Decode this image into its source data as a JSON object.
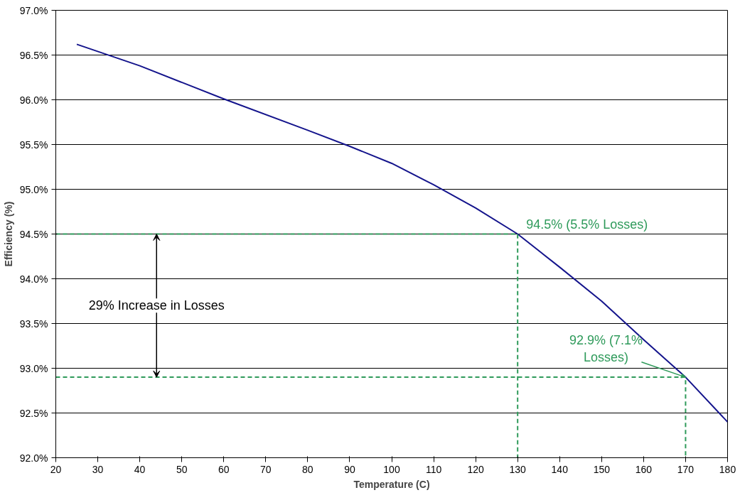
{
  "chart_data": {
    "type": "line",
    "xlabel": "Temperature (C)",
    "ylabel": "Efficiency (%)",
    "xlim": [
      20,
      180
    ],
    "xticks": [
      20,
      30,
      40,
      50,
      60,
      70,
      80,
      90,
      100,
      110,
      120,
      130,
      140,
      150,
      160,
      170,
      180
    ],
    "ylim": [
      92.0,
      97.0
    ],
    "yticks": [
      {
        "value": 92.0,
        "label": "92.0%"
      },
      {
        "value": 92.5,
        "label": "92.5%"
      },
      {
        "value": 93.0,
        "label": "93.0%"
      },
      {
        "value": 93.5,
        "label": "93.5%"
      },
      {
        "value": 94.0,
        "label": "94.0%"
      },
      {
        "value": 94.5,
        "label": "94.5%"
      },
      {
        "value": 95.0,
        "label": "95.0%"
      },
      {
        "value": 95.5,
        "label": "95.5%"
      },
      {
        "value": 96.0,
        "label": "96.0%"
      },
      {
        "value": 96.5,
        "label": "96.5%"
      },
      {
        "value": 97.0,
        "label": "97.0%"
      }
    ],
    "grid": "y",
    "marker": "none",
    "line_style": "solid",
    "series": [
      {
        "color": "#14148c",
        "x": [
          25,
          40,
          60,
          80,
          90,
          100,
          110,
          120,
          130,
          140,
          150,
          160,
          170,
          180
        ],
        "values": [
          96.62,
          96.38,
          96.01,
          95.66,
          95.48,
          95.29,
          95.05,
          94.79,
          94.5,
          94.13,
          93.75,
          93.32,
          92.9,
          92.4
        ]
      },
      {
        "color": "#2e9a5a",
        "line_style": "dashed",
        "x": [
          20,
          130,
          130
        ],
        "values": [
          94.5,
          94.5,
          92.0
        ]
      },
      {
        "color": "#2e9a5a",
        "line_style": "dashed",
        "x": [
          20,
          170,
          170
        ],
        "values": [
          92.9,
          92.9,
          92.0
        ]
      }
    ],
    "annotations": [
      {
        "text": "94.5% (5.5% Losses)",
        "x": 130,
        "y": 94.5
      },
      {
        "text": "92.9% (7.1%\nLosses)",
        "x": 170,
        "y": 92.9
      },
      "29% Increase in Losses"
    ]
  }
}
